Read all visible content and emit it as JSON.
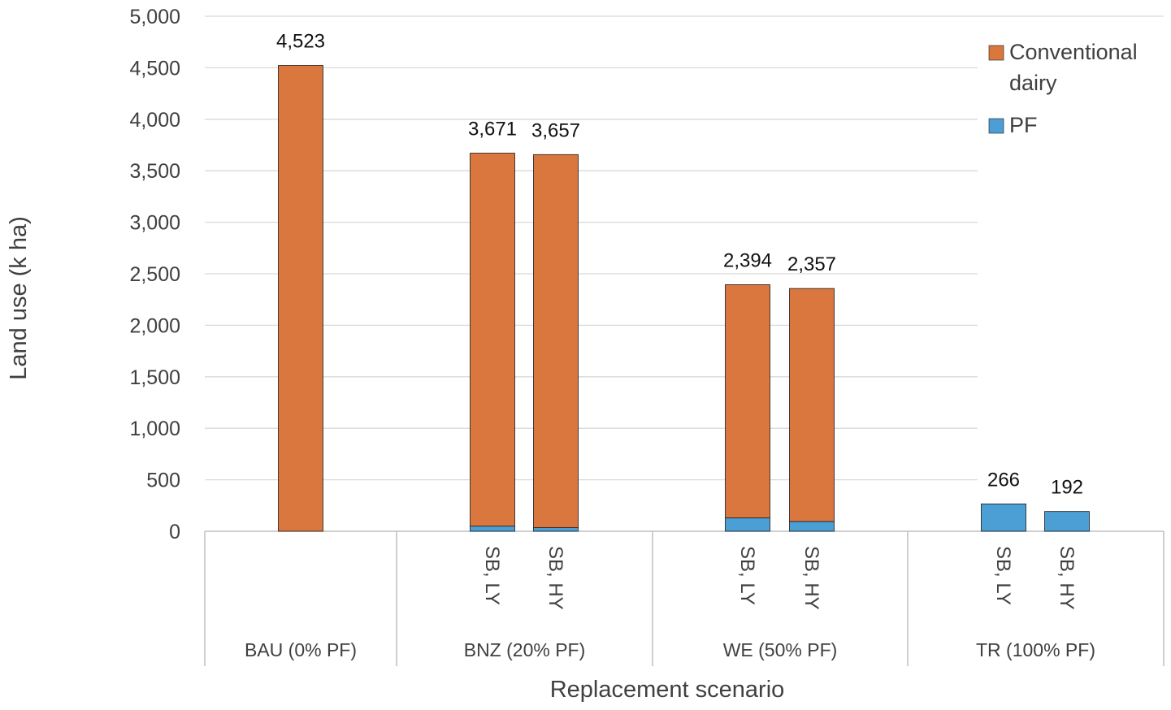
{
  "chart_data": {
    "type": "bar",
    "stacked": true,
    "xlabel": "Replacement scenario",
    "ylabel": "Land use (k ha)",
    "ylim": [
      0,
      5000
    ],
    "yticks": [
      0,
      500,
      1000,
      1500,
      2000,
      2500,
      3000,
      3500,
      4000,
      4500,
      5000
    ],
    "ytick_labels": [
      "0",
      "500",
      "1,000",
      "1,500",
      "2,000",
      "2,500",
      "3,000",
      "3,500",
      "4,000",
      "4,500",
      "5,000"
    ],
    "grid": true,
    "legend_position": "top-right",
    "groups": [
      {
        "label": "BAU (0% PF)",
        "bars": [
          {
            "sublabel": "",
            "conventional": 4523,
            "pf": 0,
            "total_label": "4,523"
          }
        ]
      },
      {
        "label": "BNZ (20% PF)",
        "bars": [
          {
            "sublabel": "SB, LY",
            "conventional": 3621,
            "pf": 50,
            "total_label": "3,671"
          },
          {
            "sublabel": "SB, HY",
            "conventional": 3622,
            "pf": 35,
            "total_label": "3,657"
          }
        ]
      },
      {
        "label": "WE (50% PF)",
        "bars": [
          {
            "sublabel": "SB, LY",
            "conventional": 2264,
            "pf": 130,
            "total_label": "2,394"
          },
          {
            "sublabel": "SB, HY",
            "conventional": 2262,
            "pf": 95,
            "total_label": "2,357"
          }
        ]
      },
      {
        "label": "TR (100% PF)",
        "bars": [
          {
            "sublabel": "SB, LY",
            "conventional": 0,
            "pf": 266,
            "total_label": "266"
          },
          {
            "sublabel": "SB, HY",
            "conventional": 0,
            "pf": 192,
            "total_label": "192"
          }
        ]
      }
    ],
    "series": [
      {
        "key": "conventional",
        "name": "Conventional dairy",
        "legend_lines": [
          "Conventional",
          "dairy"
        ],
        "color": "#d9773f"
      },
      {
        "key": "pf",
        "name": "PF",
        "legend_lines": [
          "PF"
        ],
        "color": "#4b9fd5"
      }
    ]
  }
}
